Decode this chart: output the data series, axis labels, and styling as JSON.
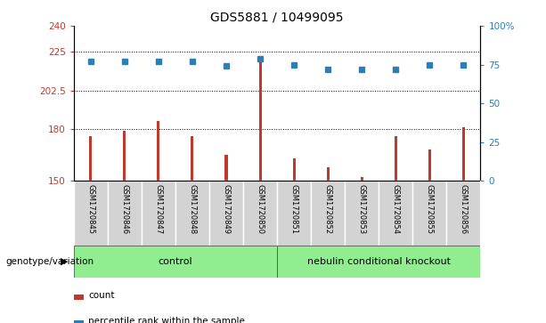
{
  "title": "GDS5881 / 10499095",
  "samples": [
    "GSM1720845",
    "GSM1720846",
    "GSM1720847",
    "GSM1720848",
    "GSM1720849",
    "GSM1720850",
    "GSM1720851",
    "GSM1720852",
    "GSM1720853",
    "GSM1720854",
    "GSM1720855",
    "GSM1720856"
  ],
  "counts": [
    176,
    179,
    185,
    176,
    165,
    219,
    163,
    158,
    152,
    176,
    168,
    181
  ],
  "percentiles": [
    77,
    77,
    77,
    77,
    74,
    79,
    75,
    72,
    72,
    72,
    75,
    75
  ],
  "ylim_left": [
    150,
    240
  ],
  "ylim_right": [
    0,
    100
  ],
  "yticks_left": [
    150,
    180,
    202.5,
    225,
    240
  ],
  "ytick_labels_left": [
    "150",
    "180",
    "202.5",
    "225",
    "240"
  ],
  "yticks_right": [
    0,
    25,
    50,
    75,
    100
  ],
  "ytick_labels_right": [
    "0",
    "25",
    "50",
    "75",
    "100%"
  ],
  "hlines": [
    180,
    202.5,
    225
  ],
  "bar_color": "#c0392b",
  "marker_color": "#2980b9",
  "bar_width": 0.08,
  "groups": [
    {
      "label": "control",
      "color": "#90ee90"
    },
    {
      "label": "nebulin conditional knockout",
      "color": "#90ee90"
    }
  ],
  "group_label_prefix": "genotype/variation",
  "legend_items": [
    {
      "label": "count",
      "color": "#c0392b"
    },
    {
      "label": "percentile rank within the sample",
      "color": "#2980b9"
    }
  ],
  "tick_label_bg": "#d3d3d3",
  "background_color": "#ffffff",
  "control_count": 6,
  "knockout_count": 6
}
